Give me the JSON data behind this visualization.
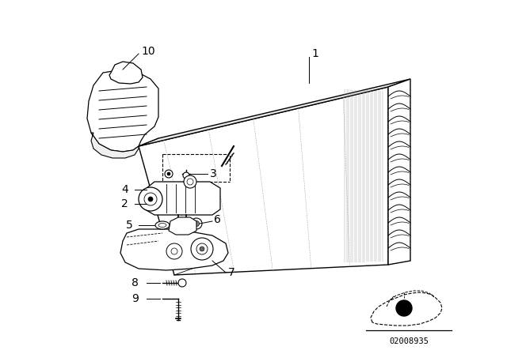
{
  "bg_color": "#ffffff",
  "diagram_code": "02008935",
  "line_color": "#000000",
  "text_color": "#000000",
  "font_size": 8.5
}
